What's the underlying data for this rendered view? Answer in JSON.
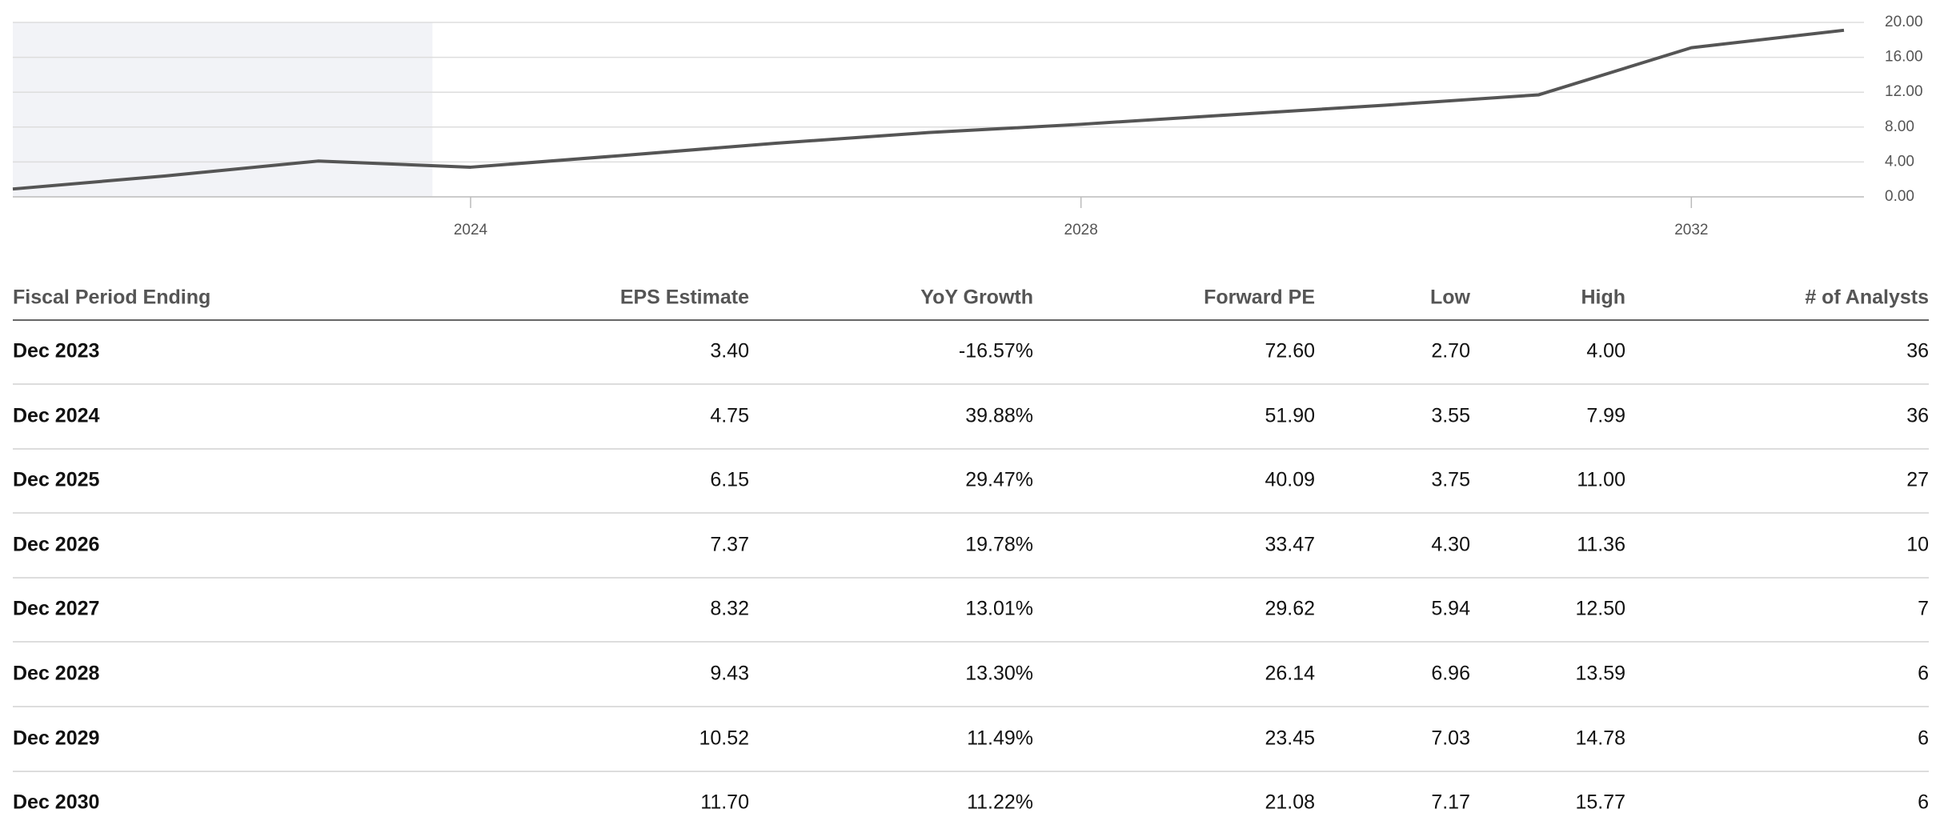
{
  "chart_data": {
    "type": "line",
    "x": [
      2021,
      2022,
      2023,
      2024,
      2025,
      2026,
      2027,
      2028,
      2029,
      2030,
      2031,
      2032,
      2033
    ],
    "values": [
      0.9,
      2.4,
      4.1,
      3.4,
      4.75,
      6.15,
      7.37,
      8.32,
      9.43,
      10.52,
      11.7,
      17.1,
      19.1
    ],
    "color": "#555555",
    "xlim": [
      2021,
      2033
    ],
    "xticks": [
      2024,
      2028,
      2032
    ],
    "ylim": [
      0,
      20
    ],
    "yticks": [
      {
        "value": 0,
        "label": "0.00"
      },
      {
        "value": 4,
        "label": "4.00"
      },
      {
        "value": 8,
        "label": "8.00"
      },
      {
        "value": 12,
        "label": "12.00"
      },
      {
        "value": 16,
        "label": "16.00"
      },
      {
        "value": 20,
        "label": "20.00"
      }
    ],
    "grid": true,
    "shaded_range": [
      2021,
      2023.75
    ]
  },
  "table": {
    "header": [
      "Fiscal Period Ending",
      "EPS Estimate",
      "YoY Growth",
      "Forward PE",
      "Low",
      "High",
      "# of Analysts"
    ],
    "rows": [
      [
        "Dec 2023",
        "3.40",
        "-16.57%",
        "72.60",
        "2.70",
        "4.00",
        "36"
      ],
      [
        "Dec 2024",
        "4.75",
        "39.88%",
        "51.90",
        "3.55",
        "7.99",
        "36"
      ],
      [
        "Dec 2025",
        "6.15",
        "29.47%",
        "40.09",
        "3.75",
        "11.00",
        "27"
      ],
      [
        "Dec 2026",
        "7.37",
        "19.78%",
        "33.47",
        "4.30",
        "11.36",
        "10"
      ],
      [
        "Dec 2027",
        "8.32",
        "13.01%",
        "29.62",
        "5.94",
        "12.50",
        "7"
      ],
      [
        "Dec 2028",
        "9.43",
        "13.30%",
        "26.14",
        "6.96",
        "13.59",
        "6"
      ],
      [
        "Dec 2029",
        "10.52",
        "11.49%",
        "23.45",
        "7.03",
        "14.78",
        "6"
      ],
      [
        "Dec 2030",
        "11.70",
        "11.22%",
        "21.08",
        "7.17",
        "15.77",
        "6"
      ]
    ]
  }
}
